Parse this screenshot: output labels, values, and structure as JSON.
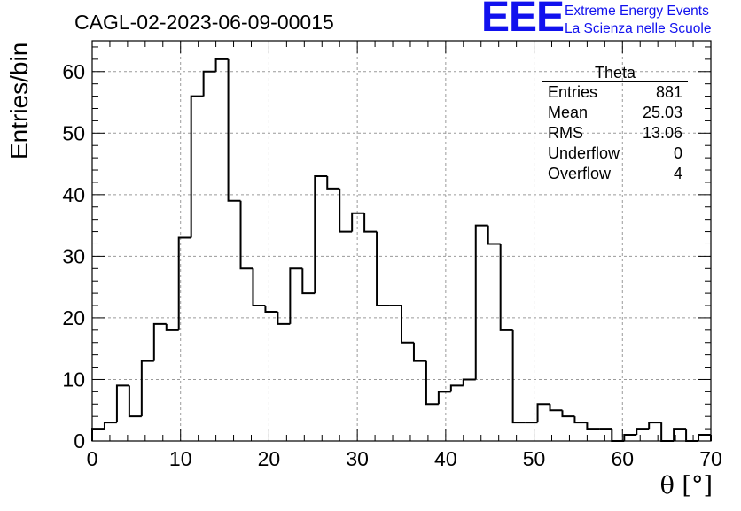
{
  "title": "CAGL-02-2023-06-09-00015",
  "logo": {
    "mark": "EEE",
    "line1": "Extreme Energy Events",
    "line2": "La Scienza nelle Scuole",
    "color": "#1111ee"
  },
  "stats": {
    "title": "Theta",
    "rows": [
      {
        "label": "Entries",
        "value": "881"
      },
      {
        "label": "Mean",
        "value": "25.03"
      },
      {
        "label": "RMS",
        "value": "13.06"
      },
      {
        "label": "Underflow",
        "value": "0"
      },
      {
        "label": "Overflow",
        "value": "4"
      }
    ]
  },
  "chart_data": {
    "type": "bar",
    "style": "step-histogram",
    "xlabel": "θ [°]",
    "ylabel": "Entries/bin",
    "xlim": [
      0,
      70
    ],
    "ylim": [
      0,
      65
    ],
    "bin_width": 1.4,
    "x_ticks": [
      0,
      10,
      20,
      30,
      40,
      50,
      60,
      70
    ],
    "y_ticks": [
      0,
      10,
      20,
      30,
      40,
      50,
      60
    ],
    "grid": true,
    "line_color": "#000000",
    "values": [
      2,
      3,
      9,
      4,
      13,
      19,
      18,
      33,
      56,
      60,
      62,
      39,
      28,
      22,
      21,
      19,
      28,
      24,
      43,
      41,
      34,
      37,
      34,
      22,
      22,
      16,
      13,
      6,
      8,
      9,
      10,
      35,
      32,
      18,
      3,
      3,
      6,
      5,
      4,
      3,
      2,
      2,
      0,
      1,
      2,
      3,
      0,
      2,
      0,
      1
    ]
  }
}
